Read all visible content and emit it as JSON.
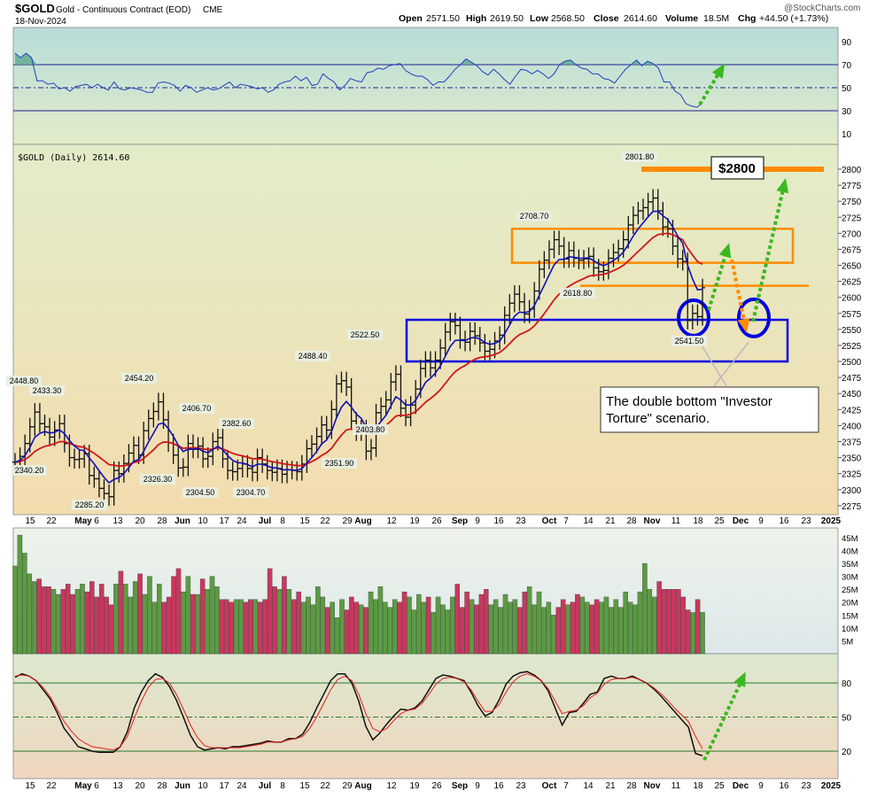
{
  "header": {
    "symbol": "$GOLD",
    "name": "Gold - Continuous Contract (EOD)",
    "exchange": "CME",
    "date": "18-Nov-2024",
    "open_label": "Open",
    "open": "2571.50",
    "high_label": "High",
    "high": "2619.50",
    "low_label": "Low",
    "low": "2568.50",
    "close_label": "Close",
    "close": "2614.60",
    "volume_label": "Volume",
    "volume": "18.5M",
    "chg_label": "Chg",
    "chg": "+44.50 (+1.73%)",
    "logo": "@StockCharts.com"
  },
  "legend": {
    "price": "$GOLD (Daily) 2614.60"
  },
  "x_axis": {
    "tick_labels": [
      "15",
      "22",
      "May",
      "6",
      "13",
      "20",
      "28",
      "Jun",
      "10",
      "17",
      "24",
      "Jul",
      "8",
      "15",
      "22",
      "29",
      "Aug",
      "12",
      "19",
      "26",
      "Sep",
      "9",
      "16",
      "23",
      "Oct",
      "7",
      "14",
      "21",
      "28",
      "Nov",
      "11",
      "18",
      "25",
      "Dec",
      "9",
      "16",
      "23",
      "2025"
    ]
  },
  "chart_data": [
    {
      "type": "line",
      "panel": "rsi",
      "y_ticks": [
        90,
        70,
        50,
        30,
        10
      ],
      "reference_lines": [
        70,
        50,
        30
      ],
      "series": [
        {
          "values": [
            80,
            76,
            80,
            76,
            56,
            56,
            53,
            54,
            49,
            50,
            47,
            51,
            52,
            53,
            50,
            53,
            50,
            48,
            55,
            49,
            48,
            50,
            49,
            48,
            46,
            46,
            54,
            55,
            54,
            52,
            47,
            52,
            50,
            46,
            48,
            50,
            48,
            49,
            52,
            55,
            50,
            53,
            52,
            51,
            49,
            50,
            46,
            48,
            53,
            55,
            56,
            60,
            56,
            59,
            52,
            53,
            62,
            58,
            55,
            48,
            52,
            58,
            56,
            55,
            63,
            64,
            67,
            66,
            69,
            70,
            71,
            65,
            62,
            60,
            60,
            57,
            52,
            55,
            55,
            60,
            66,
            70,
            75,
            72,
            69,
            64,
            61,
            66,
            62,
            57,
            53,
            60,
            66,
            65,
            62,
            65,
            62,
            58,
            62,
            70,
            73,
            74,
            70,
            67,
            66,
            62,
            62,
            58,
            57,
            54,
            60,
            66,
            70,
            74,
            69,
            73,
            71,
            67,
            55,
            55,
            47,
            44,
            36,
            34,
            33,
            37
          ]
        }
      ]
    },
    {
      "type": "line",
      "panel": "price",
      "ylim": [
        2270,
        2820
      ],
      "y_ticks": [
        2800,
        2775,
        2750,
        2725,
        2700,
        2675,
        2650,
        2625,
        2600,
        2575,
        2550,
        2525,
        2500,
        2475,
        2450,
        2425,
        2400,
        2375,
        2350,
        2325,
        2300,
        2275
      ],
      "series": [
        {
          "values": [
            2343,
            2352,
            2372,
            2398,
            2421,
            2403,
            2398,
            2382,
            2393,
            2403,
            2372,
            2350,
            2347,
            2348,
            2356,
            2322,
            2317,
            2302,
            2294,
            2289,
            2330,
            2325,
            2341,
            2357,
            2369,
            2354,
            2392,
            2411,
            2422,
            2437,
            2409,
            2373,
            2354,
            2334,
            2335,
            2372,
            2363,
            2368,
            2348,
            2352,
            2375,
            2381,
            2348,
            2330,
            2328,
            2333,
            2340,
            2333,
            2327,
            2350,
            2340,
            2330,
            2327,
            2333,
            2324,
            2331,
            2330,
            2328,
            2340,
            2364,
            2371,
            2383,
            2401,
            2393,
            2425,
            2465,
            2470,
            2460,
            2407,
            2390,
            2395,
            2360,
            2365,
            2420,
            2430,
            2440,
            2468,
            2480,
            2427,
            2413,
            2432,
            2457,
            2489,
            2502,
            2490,
            2502,
            2521,
            2546,
            2562,
            2556,
            2534,
            2530,
            2547,
            2540,
            2529,
            2516,
            2519,
            2532,
            2541,
            2572,
            2591,
            2605,
            2593,
            2574,
            2582,
            2610,
            2644,
            2658,
            2675,
            2690,
            2680,
            2660,
            2673,
            2661,
            2658,
            2660,
            2664,
            2646,
            2640,
            2642,
            2661,
            2670,
            2676,
            2690,
            2713,
            2728,
            2735,
            2740,
            2749,
            2755,
            2735,
            2710,
            2707,
            2680,
            2660,
            2656,
            2564,
            2575,
            2570,
            2615
          ]
        }
      ]
    },
    {
      "type": "bar",
      "panel": "volume",
      "ylabel": "",
      "y_ticks": [
        "45M",
        "40M",
        "35M",
        "30M",
        "25M",
        "20M",
        "15M",
        "10M",
        "5M"
      ],
      "values": [
        34,
        46,
        39,
        31,
        28,
        29,
        26,
        26,
        25,
        23,
        25,
        27,
        23,
        25,
        27,
        24,
        28,
        22,
        27,
        22,
        19,
        27,
        32,
        27,
        22,
        28,
        31,
        23,
        30,
        20,
        27,
        20,
        22,
        30,
        33,
        24,
        30,
        23,
        23,
        29,
        25,
        30,
        26,
        21,
        21,
        20,
        21,
        21,
        20,
        21,
        21,
        20,
        21,
        33,
        26,
        25,
        30,
        25,
        21,
        24,
        20,
        22,
        19,
        26,
        22,
        18,
        20,
        14,
        21,
        17,
        22,
        20,
        19,
        18,
        24,
        21,
        26,
        20,
        18,
        21,
        20,
        24,
        22,
        17,
        23,
        20,
        22,
        16,
        22,
        19,
        17,
        22,
        27,
        18,
        24,
        21,
        19,
        23,
        25,
        19,
        21,
        18,
        23,
        20,
        21,
        18,
        24,
        26,
        19,
        24,
        18,
        20,
        15,
        18,
        21,
        19,
        20,
        23,
        22,
        20,
        19,
        21,
        20,
        22,
        18,
        21,
        18,
        24,
        20,
        19,
        24,
        35,
        25,
        22,
        28,
        25,
        25,
        25,
        25,
        22,
        17,
        16,
        21,
        16
      ]
    },
    {
      "type": "line",
      "panel": "stochastic",
      "y_ticks": [
        80,
        50,
        20
      ],
      "reference_lines": [
        80,
        50,
        20
      ],
      "series": [
        {
          "values": [
            85,
            88,
            86,
            82,
            74,
            66,
            54,
            40,
            32,
            24,
            22,
            20,
            19,
            19,
            19,
            24,
            37,
            58,
            72,
            82,
            88,
            85,
            77,
            65,
            50,
            34,
            24,
            21,
            22,
            23,
            22,
            24,
            24,
            25,
            26,
            27,
            29,
            28,
            28,
            31,
            31,
            35,
            45,
            58,
            70,
            82,
            88,
            88,
            80,
            64,
            42,
            30,
            36,
            44,
            51,
            57,
            56,
            58,
            64,
            74,
            84,
            87,
            86,
            84,
            82,
            72,
            60,
            51,
            54,
            65,
            79,
            86,
            89,
            90,
            87,
            82,
            73,
            58,
            43,
            54,
            55,
            62,
            70,
            72,
            84,
            86,
            84,
            84,
            86,
            83,
            80,
            75,
            69,
            62,
            55,
            48,
            41,
            18,
            16
          ]
        },
        {
          "values": [
            86,
            87,
            86,
            82,
            76,
            68,
            57,
            46,
            38,
            31,
            27,
            24,
            23,
            22,
            21,
            24,
            33,
            49,
            64,
            76,
            83,
            84,
            80,
            70,
            57,
            43,
            32,
            25,
            23,
            23,
            23,
            23,
            23,
            24,
            25,
            26,
            28,
            28,
            28,
            30,
            31,
            33,
            40,
            50,
            62,
            74,
            83,
            86,
            82,
            70,
            53,
            40,
            37,
            40,
            47,
            53,
            56,
            57,
            62,
            70,
            79,
            84,
            85,
            84,
            81,
            74,
            64,
            55,
            55,
            61,
            72,
            81,
            86,
            88,
            86,
            82,
            75,
            64,
            53,
            55,
            56,
            60,
            67,
            71,
            79,
            83,
            84,
            84,
            85,
            83,
            80,
            76,
            71,
            65,
            58,
            52,
            46,
            33,
            22
          ]
        }
      ]
    }
  ],
  "price_labels": [
    "2448.80",
    "2433.30",
    "2340.20",
    "2285.20",
    "2454.20",
    "2326.30",
    "2406.70",
    "2304.50",
    "2382.60",
    "2304.70",
    "2488.40",
    "2351.90",
    "2403.80",
    "2522.50",
    "2708.70",
    "2618.80",
    "2801.80",
    "2541.50"
  ],
  "annotations": {
    "target_label": "$2800",
    "callout": "The double bottom \"Investor Torture\" scenario."
  },
  "colors": {
    "rsi_bg_top": "#b9ddd9",
    "price_bg_top": "#d8eed4",
    "price_bg_bottom": "#f3dcb0",
    "ma_fast": "#1010b8",
    "ma_slow": "#d01818",
    "up_volume": "#5c9a45",
    "down_volume": "#c8385e",
    "box_blue": "#0000e0",
    "box_orange": "#ff8c00",
    "arrow_green": "#3cb820",
    "arrow_orange": "#ff8c00"
  }
}
